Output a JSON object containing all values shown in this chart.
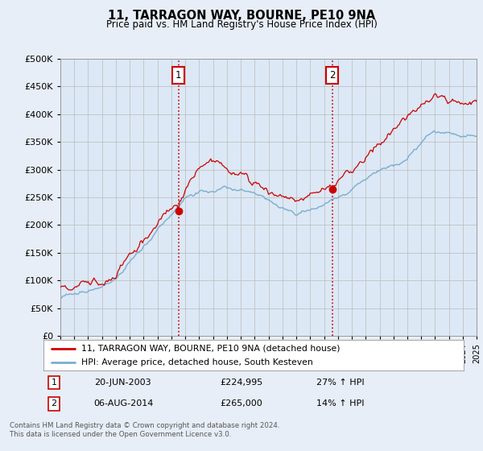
{
  "title": "11, TARRAGON WAY, BOURNE, PE10 9NA",
  "subtitle": "Price paid vs. HM Land Registry's House Price Index (HPI)",
  "legend_line1": "11, TARRAGON WAY, BOURNE, PE10 9NA (detached house)",
  "legend_line2": "HPI: Average price, detached house, South Kesteven",
  "annotation1_label": "1",
  "annotation1_date": "20-JUN-2003",
  "annotation1_price": "£224,995",
  "annotation1_hpi": "27% ↑ HPI",
  "annotation2_label": "2",
  "annotation2_date": "06-AUG-2014",
  "annotation2_price": "£265,000",
  "annotation2_hpi": "14% ↑ HPI",
  "footer1": "Contains HM Land Registry data © Crown copyright and database right 2024.",
  "footer2": "This data is licensed under the Open Government Licence v3.0.",
  "ylim": [
    0,
    500000
  ],
  "yticks": [
    0,
    50000,
    100000,
    150000,
    200000,
    250000,
    300000,
    350000,
    400000,
    450000,
    500000
  ],
  "background_color": "#e8eef8",
  "plot_bg_color": "#dce8f5",
  "red_line_color": "#cc0000",
  "blue_line_color": "#7aadcf",
  "annotation_box_color": "#cc0000",
  "vline_color": "#cc0000",
  "grid_color": "#bbbbbb",
  "title_color": "#000000",
  "purchase1_year": 2003.47,
  "purchase2_year": 2014.58,
  "purchase1_price": 224995,
  "purchase2_price": 265000
}
